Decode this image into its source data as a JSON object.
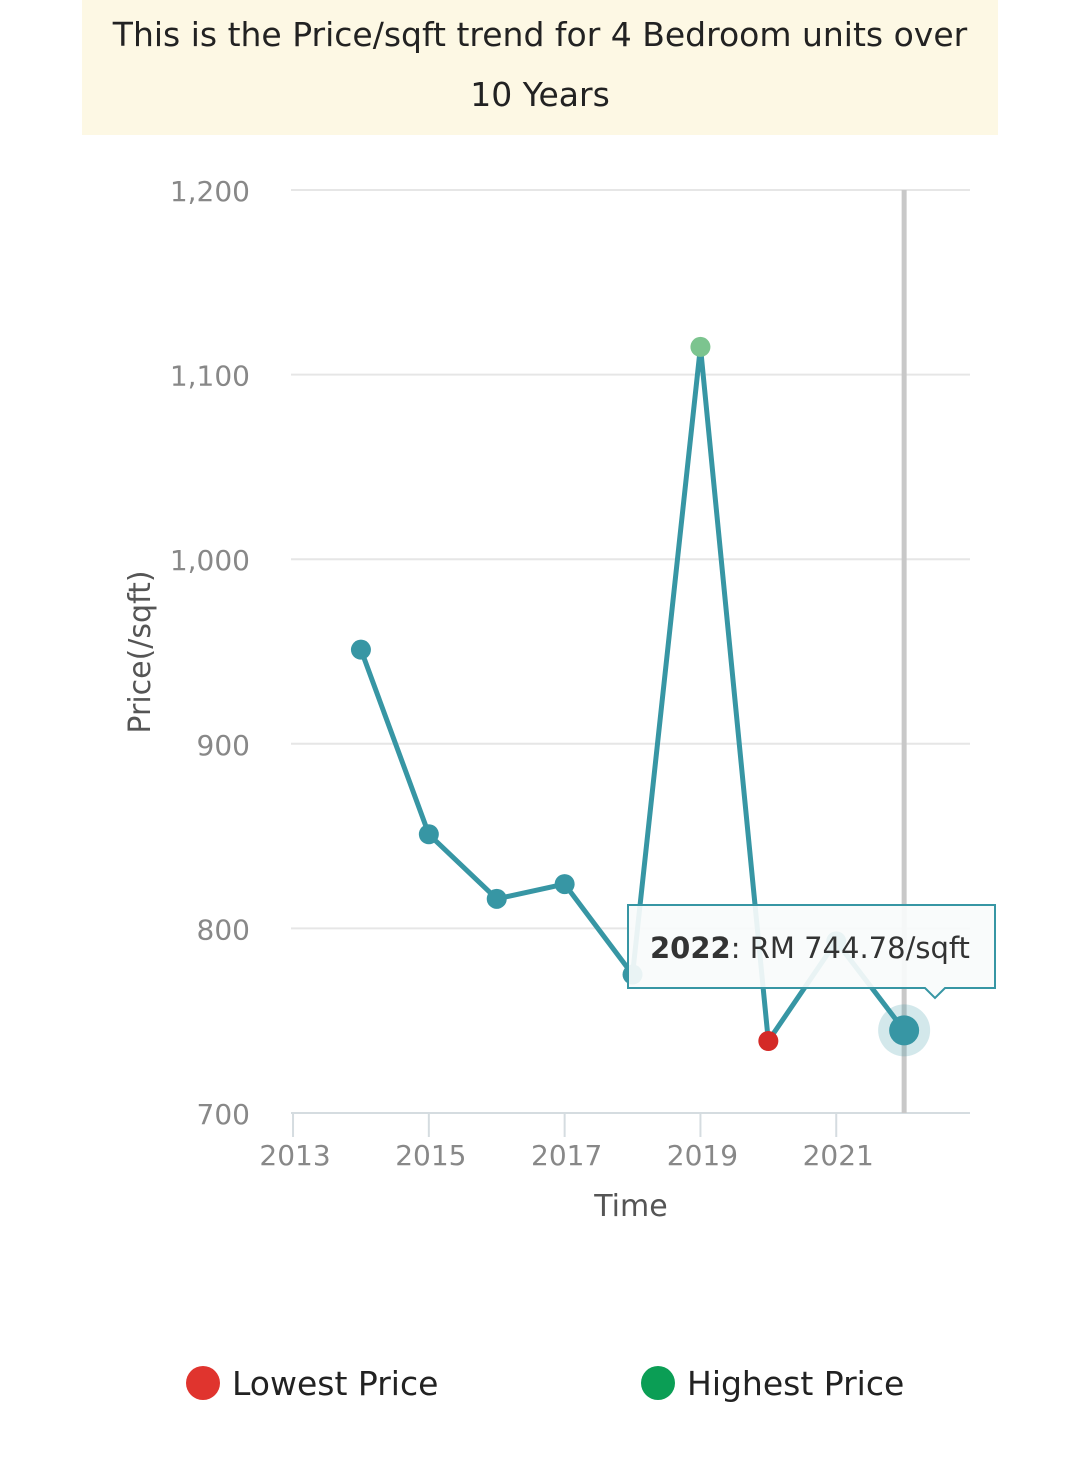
{
  "title": "This is the Price/sqft trend for 4 Bedroom units over 10 Years",
  "chart_data": {
    "type": "line",
    "xlabel": "Time",
    "ylabel": "Price(/sqft)",
    "xlim": [
      2012.97,
      2022.97
    ],
    "ylim": [
      700,
      1200
    ],
    "y_ticks": [
      700,
      800,
      900,
      1000,
      1100,
      1200
    ],
    "y_tick_labels": [
      "700",
      "800",
      "900",
      "1,000",
      "1,100",
      "1,200"
    ],
    "x_ticks": [
      2013,
      2015,
      2017,
      2019,
      2021
    ],
    "x_tick_labels": [
      "2013",
      "2015",
      "2017",
      "2019",
      "2021"
    ],
    "grid": true,
    "series": [
      {
        "x": [
          2014,
          2015,
          2016,
          2017,
          2018,
          2019,
          2020,
          2021,
          2022
        ],
        "y": [
          951,
          851,
          816,
          824,
          775,
          1115,
          739,
          793,
          744.78
        ],
        "color": "#3796a4"
      }
    ],
    "lowest_point": {
      "x": 2020,
      "y": 739,
      "color": "#d42a27"
    },
    "highest_point": {
      "x": 2019,
      "y": 1115,
      "color": "#7cc48f"
    },
    "highlighted_x": 2022,
    "tooltip": {
      "year": "2022",
      "text": ": RM 744.78/sqft"
    }
  },
  "legend": {
    "lowest": {
      "label": "Lowest Price",
      "color": "#e0342e"
    },
    "highest": {
      "label": "Highest Price",
      "color": "#0b9e55"
    }
  }
}
